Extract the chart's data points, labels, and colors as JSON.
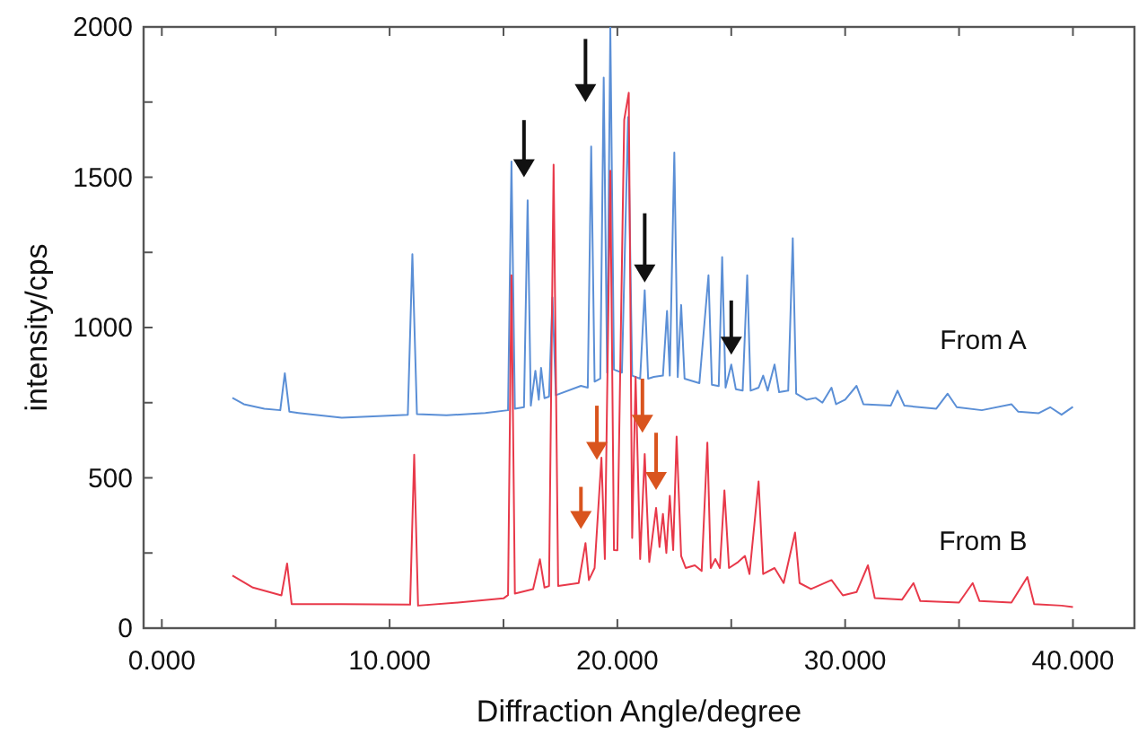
{
  "chart_data": {
    "type": "line",
    "xlabel": "Diffraction Angle/degree",
    "ylabel": "intensity/cps",
    "xlim": [
      -0.8,
      42.7
    ],
    "ylim": [
      0,
      2000
    ],
    "xticks": [
      {
        "value": 0,
        "label": "0.000"
      },
      {
        "value": 5,
        "label": null
      },
      {
        "value": 10,
        "label": "10.000"
      },
      {
        "value": 15,
        "label": null
      },
      {
        "value": 20,
        "label": "20.000"
      },
      {
        "value": 25,
        "label": null
      },
      {
        "value": 30,
        "label": "30.000"
      },
      {
        "value": 35,
        "label": null
      },
      {
        "value": 40,
        "label": "40.000"
      }
    ],
    "yticks": [
      0,
      {
        "value": 250,
        "label": null
      },
      500,
      {
        "value": 750,
        "label": null
      },
      1000,
      {
        "value": 1250,
        "label": null
      },
      1500,
      {
        "value": 1750,
        "label": null
      },
      2000
    ],
    "grid": false,
    "legend": false,
    "marker": "none",
    "line_style": "solid",
    "series": [
      {
        "name": "From A",
        "color": "#5b8fd6",
        "x": [
          3.1,
          3.6,
          4.5,
          5.2,
          5.4,
          5.6,
          6.0,
          7.9,
          9.5,
          10.8,
          11.0,
          11.2,
          12.5,
          14.2,
          15.2,
          15.35,
          15.5,
          15.9,
          16.06,
          16.2,
          16.4,
          16.55,
          16.65,
          16.8,
          17.0,
          17.15,
          17.3,
          18.4,
          18.7,
          18.85,
          19.0,
          19.25,
          19.4,
          19.55,
          19.69,
          19.85,
          20.2,
          20.47,
          20.65,
          21.0,
          21.2,
          21.35,
          21.6,
          22.0,
          22.18,
          22.3,
          22.5,
          22.65,
          22.8,
          22.95,
          23.6,
          24.0,
          24.15,
          24.45,
          24.6,
          24.75,
          25.0,
          25.2,
          25.5,
          25.7,
          25.85,
          26.2,
          26.4,
          26.6,
          26.9,
          27.1,
          27.5,
          27.7,
          27.85,
          28.3,
          28.7,
          29.0,
          29.4,
          29.6,
          30.0,
          30.5,
          30.8,
          32.0,
          32.3,
          32.6,
          34.0,
          34.5,
          34.9,
          36.0,
          37.3,
          37.6,
          38.5,
          39.0,
          39.5,
          40.0
        ],
        "values": [
          766,
          745,
          730,
          725,
          848,
          720,
          716,
          700,
          705,
          710,
          1244,
          712,
          708,
          716,
          725,
          1552,
          730,
          735,
          1423,
          740,
          856,
          760,
          866,
          765,
          770,
          1100,
          775,
          806,
          800,
          1602,
          820,
          830,
          1831,
          850,
          2000,
          860,
          850,
          1700,
          840,
          830,
          1124,
          830,
          836,
          840,
          1055,
          840,
          1582,
          835,
          1075,
          830,
          815,
          1174,
          810,
          805,
          1234,
          800,
          877,
          795,
          790,
          1174,
          790,
          800,
          840,
          790,
          877,
          785,
          790,
          1297,
          780,
          760,
          766,
          750,
          800,
          745,
          760,
          806,
          745,
          740,
          790,
          740,
          730,
          780,
          735,
          725,
          745,
          720,
          715,
          735,
          710,
          736
        ]
      },
      {
        "name": "From B",
        "color": "#e8394a",
        "x": [
          3.1,
          4.0,
          5.25,
          5.5,
          5.7,
          7.9,
          10.9,
          11.08,
          11.25,
          13.0,
          15.0,
          15.2,
          15.35,
          15.5,
          16.3,
          16.6,
          16.8,
          17.0,
          17.2,
          17.4,
          18.3,
          18.6,
          18.75,
          19.0,
          19.3,
          19.45,
          19.69,
          19.85,
          20.0,
          20.3,
          20.5,
          20.65,
          20.8,
          21.0,
          21.2,
          21.4,
          21.7,
          21.85,
          22.0,
          22.15,
          22.3,
          22.45,
          22.6,
          22.8,
          23.0,
          23.4,
          23.7,
          23.95,
          24.1,
          24.3,
          24.5,
          24.7,
          24.9,
          25.3,
          25.6,
          25.8,
          26.2,
          26.4,
          26.9,
          27.3,
          27.8,
          28.0,
          28.5,
          29.4,
          29.9,
          30.5,
          31.0,
          31.3,
          32.5,
          33.0,
          33.3,
          35.0,
          35.6,
          35.9,
          37.3,
          38.0,
          38.3,
          39.5,
          40.0
        ],
        "values": [
          175,
          135,
          109,
          215,
          80,
          80,
          78,
          577,
          75,
          85,
          99,
          110,
          1174,
          115,
          130,
          229,
          135,
          140,
          1542,
          140,
          150,
          283,
          160,
          200,
          567,
          230,
          1522,
          260,
          259,
          1691,
          1781,
          300,
          836,
          230,
          579,
          220,
          400,
          270,
          380,
          250,
          440,
          260,
          637,
          240,
          200,
          209,
          190,
          617,
          200,
          230,
          200,
          458,
          200,
          220,
          240,
          180,
          488,
          180,
          200,
          150,
          318,
          150,
          130,
          160,
          109,
          120,
          209,
          100,
          95,
          150,
          90,
          85,
          150,
          90,
          85,
          170,
          80,
          75,
          70
        ]
      }
    ]
  }
}
